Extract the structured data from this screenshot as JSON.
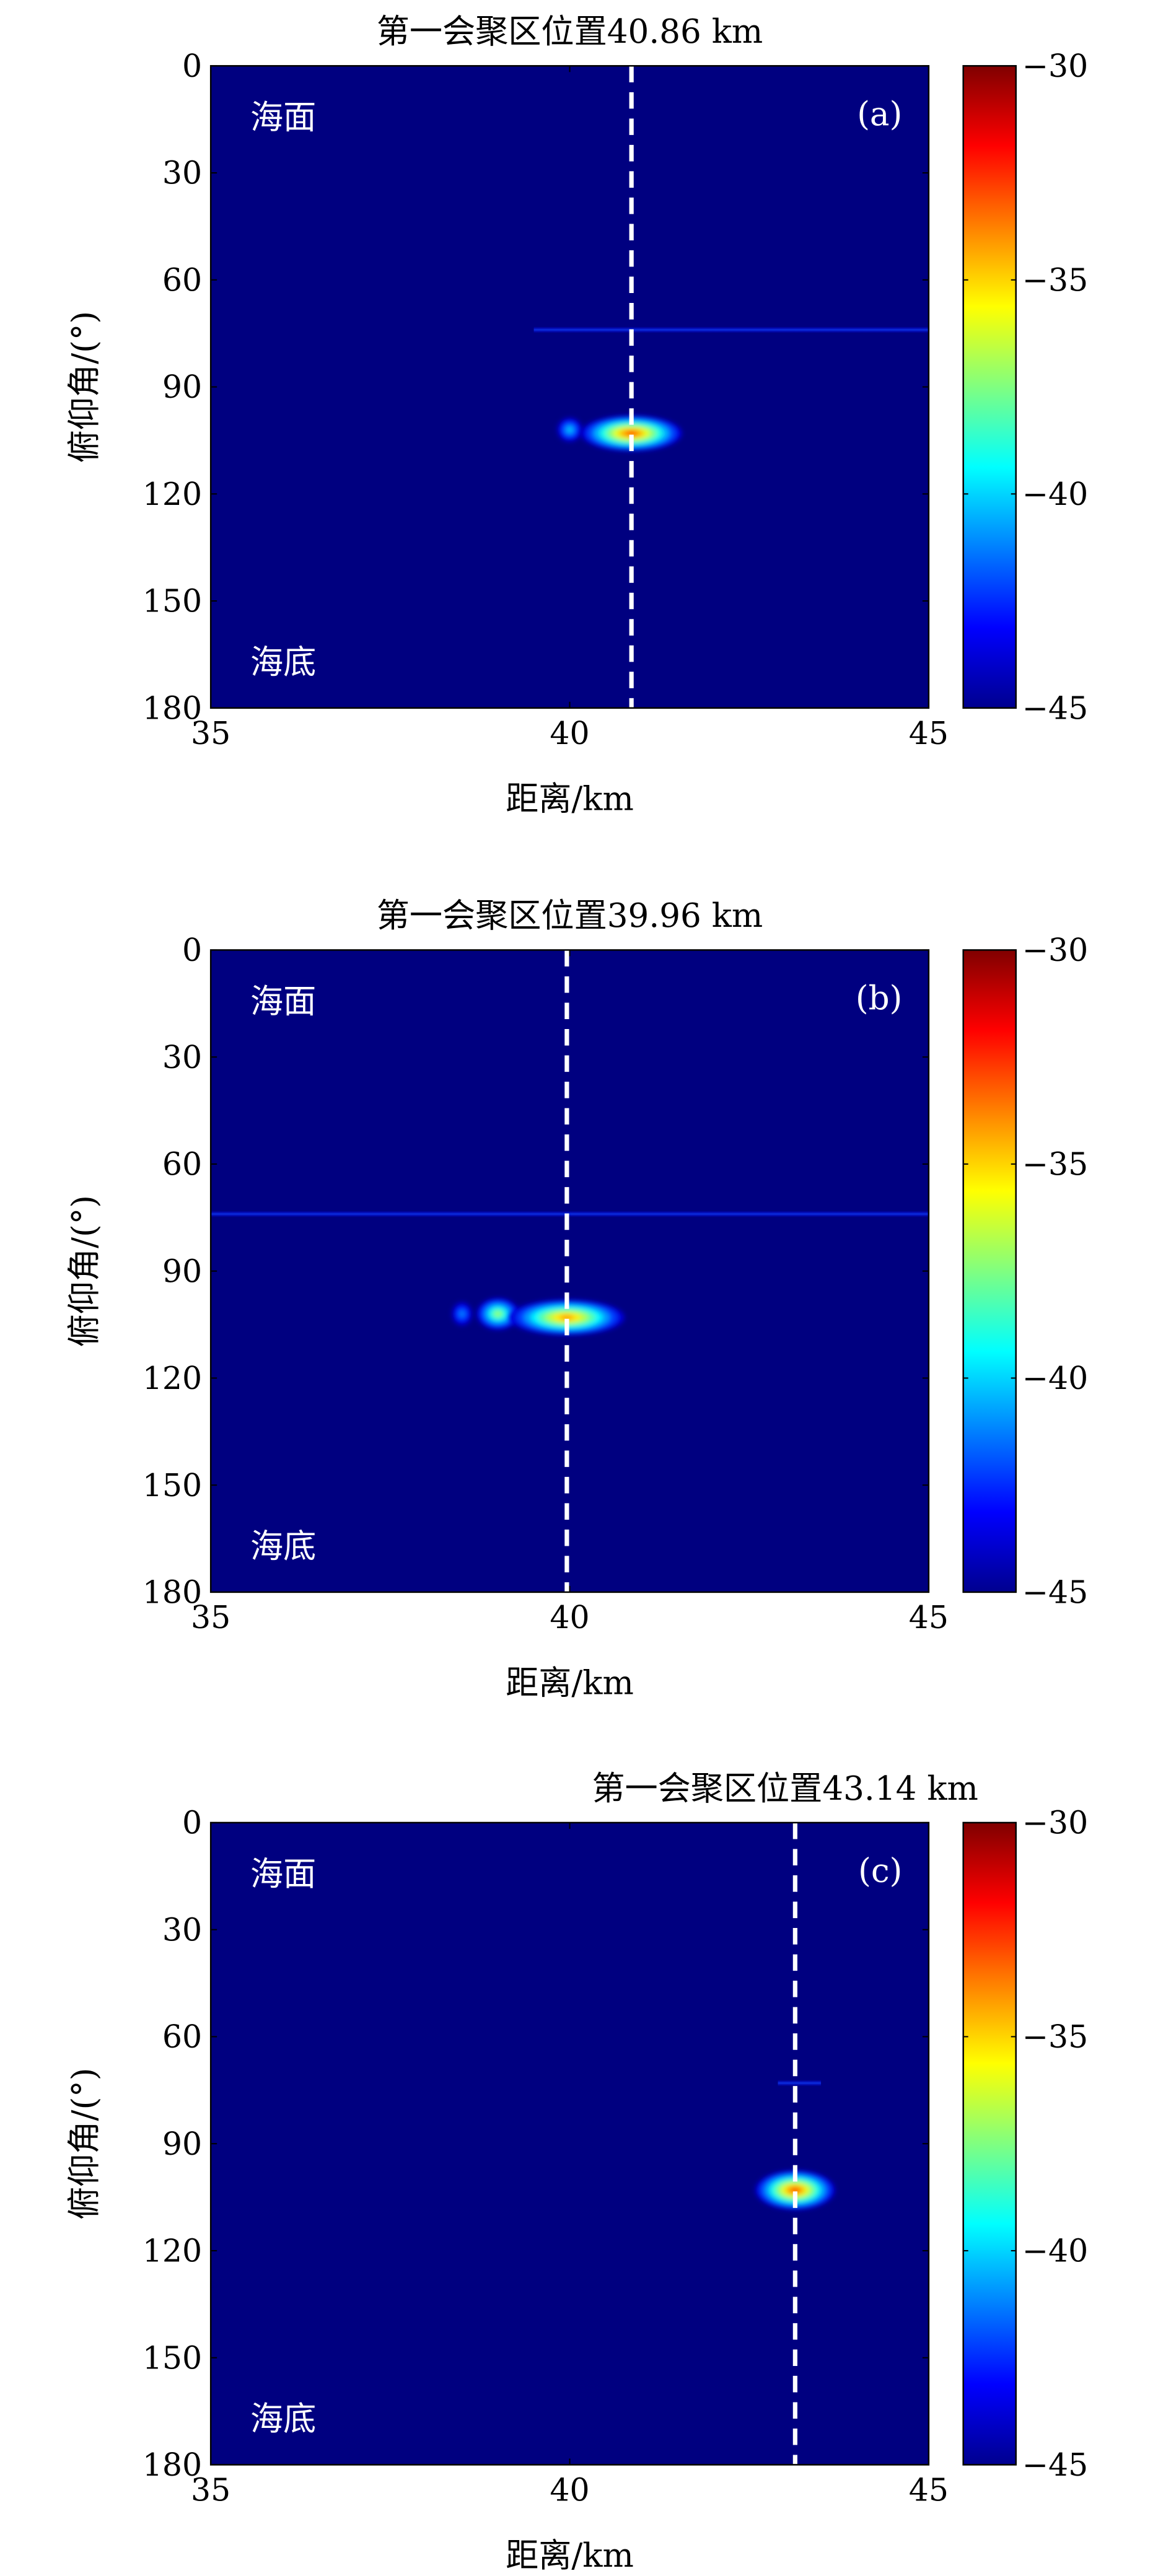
{
  "colorbar_colors": [
    "#00008f",
    "#0000ff",
    "#0080ff",
    "#00ffff",
    "#80ff80",
    "#ffff00",
    "#ff8000",
    "#ff0000",
    "#800000"
  ],
  "chart_data": [
    {
      "type": "heatmap",
      "title": "第一会聚区位置40.86 km",
      "xlabel": "距离/km",
      "ylabel": "俯仰角/(°)",
      "panel_label": "(a)",
      "top_annotation": "海面",
      "bottom_annotation": "海底",
      "xlim": [
        35,
        45
      ],
      "ylim": [
        0,
        180
      ],
      "y_inverted": true,
      "xticks": [
        "35",
        "40",
        "45"
      ],
      "yticks": [
        "0",
        "30",
        "60",
        "90",
        "120",
        "150",
        "180"
      ],
      "clim": [
        -45,
        -30
      ],
      "colorbar_ticks": [
        "−30",
        "−35",
        "−40",
        "−45"
      ],
      "colormap": "jet",
      "background_value": -45,
      "marker_line_x": 40.86,
      "blobs": [
        {
          "x": 40.0,
          "y": 102,
          "rx": 0.18,
          "ry": 3.5,
          "peak": -40
        },
        {
          "x": 40.86,
          "y": 103,
          "rx": 0.7,
          "ry": 5,
          "peak": -33
        }
      ],
      "bands": [
        {
          "y": 74,
          "x_start": 39.5,
          "x_end": 45,
          "peak": -43.5
        }
      ]
    },
    {
      "type": "heatmap",
      "title": "第一会聚区位置39.96 km",
      "xlabel": "距离/km",
      "ylabel": "俯仰角/(°)",
      "panel_label": "(b)",
      "top_annotation": "海面",
      "bottom_annotation": "海底",
      "xlim": [
        35,
        45
      ],
      "ylim": [
        0,
        180
      ],
      "y_inverted": true,
      "xticks": [
        "35",
        "40",
        "45"
      ],
      "yticks": [
        "0",
        "30",
        "60",
        "90",
        "120",
        "150",
        "180"
      ],
      "clim": [
        -45,
        -30
      ],
      "colorbar_ticks": [
        "−30",
        "−35",
        "−40",
        "−45"
      ],
      "colormap": "jet",
      "background_value": -45,
      "marker_line_x": 39.96,
      "blobs": [
        {
          "x": 38.5,
          "y": 102,
          "rx": 0.15,
          "ry": 3.5,
          "peak": -41
        },
        {
          "x": 39.0,
          "y": 102,
          "rx": 0.3,
          "ry": 4.5,
          "peak": -37
        },
        {
          "x": 39.96,
          "y": 103,
          "rx": 0.8,
          "ry": 5,
          "peak": -34
        }
      ],
      "bands": [
        {
          "y": 74,
          "x_start": 35,
          "x_end": 45,
          "peak": -43.5
        }
      ]
    },
    {
      "type": "heatmap",
      "title": "第一会聚区位置43.14 km",
      "xlabel": "距离/km",
      "ylabel": "俯仰角/(°)",
      "panel_label": "(c)",
      "top_annotation": "海面",
      "bottom_annotation": "海底",
      "xlim": [
        35,
        45
      ],
      "ylim": [
        0,
        180
      ],
      "y_inverted": true,
      "xticks": [
        "35",
        "40",
        "45"
      ],
      "yticks": [
        "0",
        "30",
        "60",
        "90",
        "120",
        "150",
        "180"
      ],
      "clim": [
        -45,
        -30
      ],
      "colorbar_ticks": [
        "−30",
        "−35",
        "−40",
        "−45"
      ],
      "colormap": "jet",
      "background_value": -45,
      "marker_line_x": 43.14,
      "blobs": [
        {
          "x": 43.14,
          "y": 103,
          "rx": 0.55,
          "ry": 5.5,
          "peak": -33
        }
      ],
      "bands": [
        {
          "y": 73,
          "x_start": 42.9,
          "x_end": 43.5,
          "peak": -44
        }
      ]
    }
  ]
}
